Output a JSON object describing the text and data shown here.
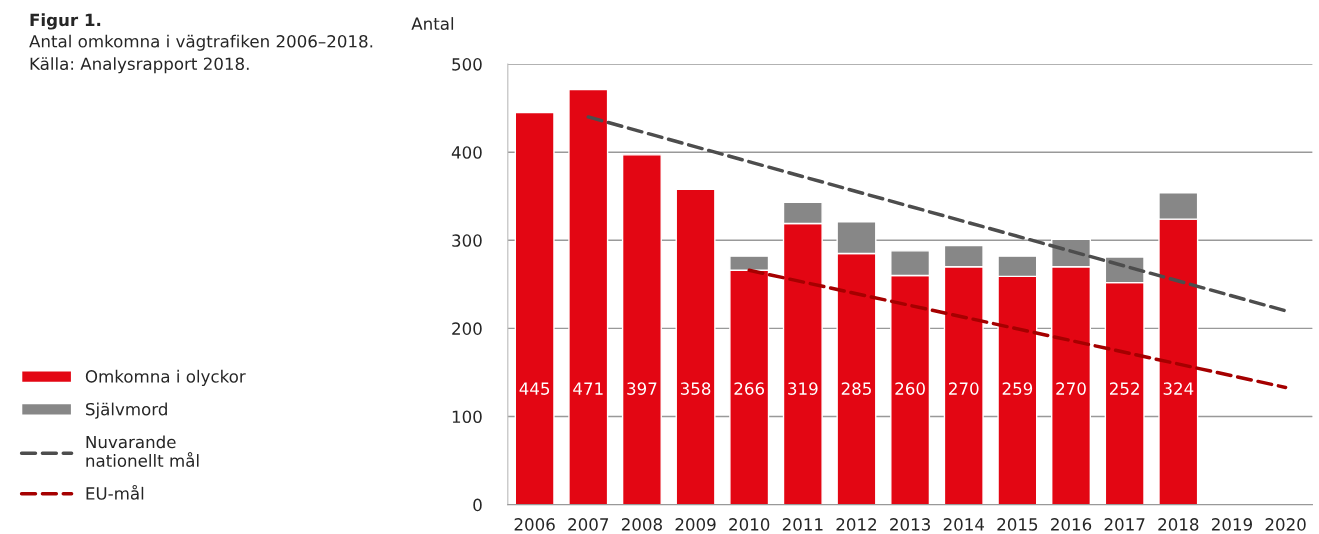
{
  "chart_data": {
    "type": "bar",
    "stacked": true,
    "title": "Figur 1.",
    "subtitle": "Antal omkomna i vägtrafiken 2006–2018.\nKälla: Analysrapport 2018.",
    "ylabel": "Antal",
    "x": [
      2006,
      2007,
      2008,
      2009,
      2010,
      2011,
      2012,
      2013,
      2014,
      2015,
      2016,
      2017,
      2018
    ],
    "xlim": [
      2005.5,
      2020.5
    ],
    "xticks": [
      2006,
      2007,
      2008,
      2009,
      2010,
      2011,
      2012,
      2013,
      2014,
      2015,
      2016,
      2017,
      2018,
      2019,
      2020
    ],
    "series": [
      {
        "name": "Omkomna i olyckor",
        "color": "#e30613",
        "values": [
          445,
          471,
          397,
          358,
          266,
          319,
          285,
          260,
          270,
          259,
          270,
          252,
          324
        ],
        "value_labels": [
          "445",
          "471",
          "397",
          "358",
          "266",
          "319",
          "285",
          "260",
          "270",
          "259",
          "270",
          "252",
          "324"
        ]
      },
      {
        "name": "Självmord",
        "color": "#878787",
        "values": [
          null,
          null,
          null,
          null,
          16,
          24,
          36,
          28,
          24,
          23,
          31,
          29,
          30
        ]
      },
      {
        "name": "Nuvarande\nnationellt mål",
        "type": "line",
        "line_style": "dashed",
        "color": "#4d4d4d",
        "x": [
          2007,
          2020
        ],
        "values": [
          440,
          220
        ]
      },
      {
        "name": "EU-mål",
        "type": "line",
        "line_style": "dashed",
        "color": "#a50000",
        "x": [
          2010,
          2020
        ],
        "values": [
          266,
          133
        ]
      }
    ],
    "ylim": [
      0,
      500
    ],
    "yticks": [
      0,
      100,
      200,
      300,
      400,
      500
    ],
    "grid": "y",
    "legend": "left"
  }
}
